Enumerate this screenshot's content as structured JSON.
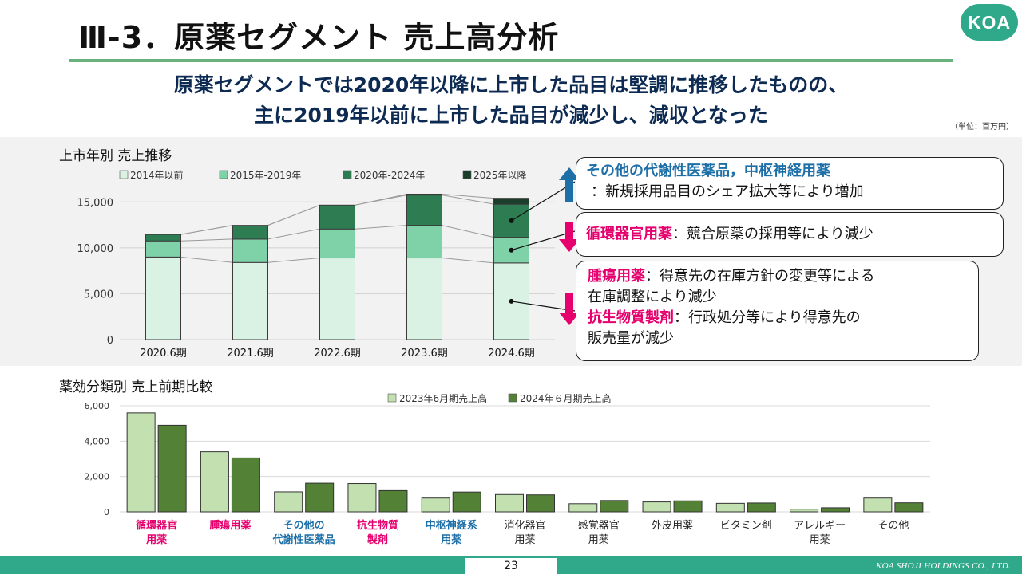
{
  "header": {
    "title": "Ⅲ-3．原薬セグメント 売上高分析",
    "logo": "KOA",
    "headline_line1": "原薬セグメントでは2020年以降に上市した品目は堅調に推移したものの、",
    "headline_line2": "主に2019年以前に上市した品目が減少し、減収となった",
    "unit": "（単位：百万円）"
  },
  "chart_data": [
    {
      "type": "bar",
      "stacked": true,
      "title": "上市年別 売上推移",
      "categories": [
        "2020.6期",
        "2021.6期",
        "2022.6期",
        "2023.6期",
        "2024.6期"
      ],
      "series": [
        {
          "name": "2014年以前",
          "values": [
            9000,
            8400,
            8900,
            8900,
            8350
          ],
          "color": "#d9f2e4"
        },
        {
          "name": "2015年-2019年",
          "values": [
            1750,
            2550,
            3150,
            3550,
            2800
          ],
          "color": "#7fd1a8"
        },
        {
          "name": "2020年-2024年",
          "values": [
            700,
            1500,
            2600,
            3300,
            3600
          ],
          "color": "#2e7d52"
        },
        {
          "name": "2025年以降",
          "values": [
            0,
            0,
            0,
            100,
            650
          ],
          "color": "#1a3d2c"
        }
      ],
      "yticks": [
        0,
        5000,
        10000,
        15000
      ],
      "ytick_labels": [
        "0",
        "5,000",
        "10,000",
        "15,000"
      ],
      "ylim": [
        0,
        16500
      ],
      "legend": "top"
    },
    {
      "type": "bar",
      "title": "薬効分類別 売上前期比較",
      "categories": [
        "循環器官用薬",
        "腫瘍用薬",
        "その他の代謝性医薬品",
        "抗生物質製剤",
        "中枢神経系用薬",
        "消化器官用薬",
        "感覚器官用薬",
        "外皮用薬",
        "ビタミン剤",
        "アレルギー用薬",
        "その他"
      ],
      "category_labels": [
        {
          "line1": "循環器官",
          "line2": "用薬",
          "color": "#e5006d"
        },
        {
          "line1": "腫瘍用薬",
          "line2": "",
          "color": "#e5006d"
        },
        {
          "line1": "その他の",
          "line2": "代謝性医薬品",
          "color": "#1d6fa8"
        },
        {
          "line1": "抗生物質",
          "line2": "製剤",
          "color": "#e5006d"
        },
        {
          "line1": "中枢神経系",
          "line2": "用薬",
          "color": "#1d6fa8"
        },
        {
          "line1": "消化器官",
          "line2": "用薬",
          "color": "#222222"
        },
        {
          "line1": "感覚器官",
          "line2": "用薬",
          "color": "#222222"
        },
        {
          "line1": "外皮用薬",
          "line2": "",
          "color": "#222222"
        },
        {
          "line1": "ビタミン剤",
          "line2": "",
          "color": "#222222"
        },
        {
          "line1": "アレルギー",
          "line2": "用薬",
          "color": "#222222"
        },
        {
          "line1": "その他",
          "line2": "",
          "color": "#222222"
        }
      ],
      "series": [
        {
          "name": "2023年6月期売上高",
          "values": [
            5600,
            3400,
            1130,
            1600,
            780,
            980,
            460,
            560,
            480,
            150,
            780
          ],
          "color": "#c2e0b0"
        },
        {
          "name": "2024年６月期売上高",
          "values": [
            4900,
            3050,
            1620,
            1200,
            1120,
            960,
            640,
            620,
            500,
            230,
            510
          ],
          "color": "#538135"
        }
      ],
      "yticks": [
        0,
        2000,
        4000,
        6000
      ],
      "ytick_labels": [
        "0",
        "2,000",
        "4,000",
        "6,000"
      ],
      "ylim": [
        0,
        6000
      ],
      "legend": "top"
    }
  ],
  "callouts": [
    {
      "title": "その他の代謝性医薬品，中枢神経用薬",
      "text": "：新規採用品目のシェア拡大等により増加"
    },
    {
      "title": "循環器官用薬",
      "text": "：競合原薬の採用等により減少"
    },
    {
      "title1": "腫瘍用薬",
      "text1a": "：得意先の在庫方針の変更等による",
      "text1b": "在庫調整により減少",
      "title2": "抗生物質製剤",
      "text2a": "：行政処分等により得意先の",
      "text2b": "販売量が減少"
    }
  ],
  "footer": {
    "page": "23",
    "company": "KOA SHOJI HOLDINGS CO., LTD."
  },
  "colors": {
    "accent_green": "#2fa98a",
    "rule_green": "#6ab27d",
    "navy": "#0d2a52",
    "pink": "#e5006d",
    "blue": "#1d6fa8",
    "arrow_up": "#1d6fa8",
    "arrow_down": "#e5006d"
  }
}
